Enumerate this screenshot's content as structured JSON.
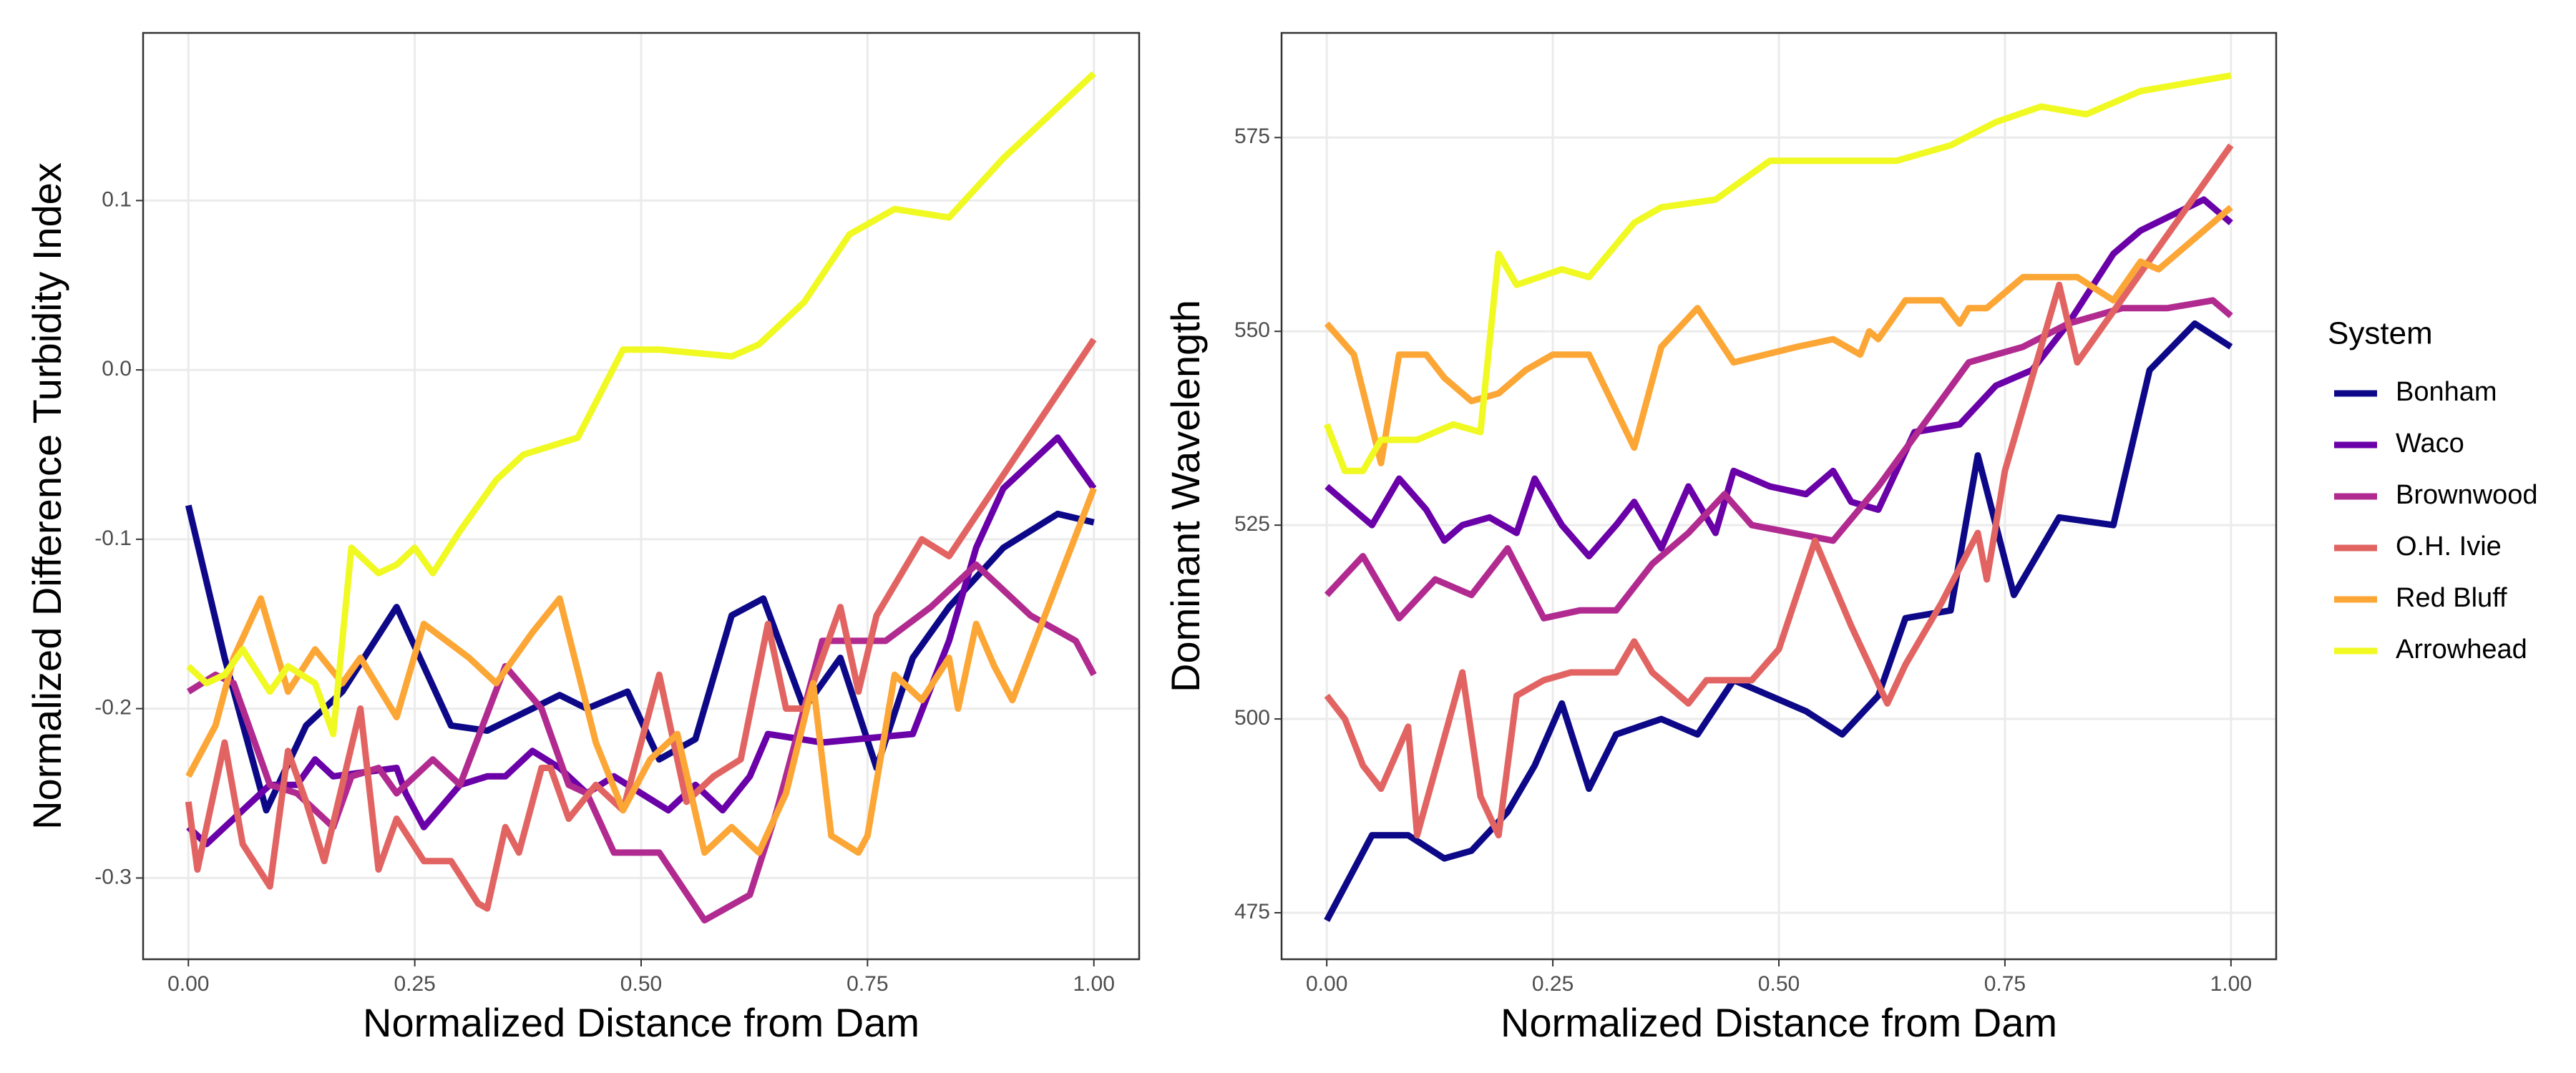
{
  "chart_data": [
    {
      "type": "line",
      "xlabel": "Normalized Distance from Dam",
      "ylabel": "Normalized Difference Turbidity Index",
      "xlim": [
        -0.05,
        1.05
      ],
      "ylim": [
        -0.348,
        0.199
      ],
      "xticks": [
        {
          "value": 0,
          "label": "0.00"
        },
        0.25,
        {
          "value": 0.5,
          "label": "0.50"
        },
        0.75,
        {
          "value": 1,
          "label": "1.00"
        }
      ],
      "yticks": [
        -0.3,
        -0.2,
        -0.1,
        {
          "value": 0,
          "label": "0.0"
        },
        0.1
      ],
      "grid": true,
      "series": [
        {
          "name": "Bonham",
          "color": "#0d0887",
          "x": [
            0,
            0.04,
            0.086,
            0.13,
            0.17,
            0.23,
            0.29,
            0.33,
            0.38,
            0.41,
            0.44,
            0.485,
            0.52,
            0.56,
            0.6,
            0.635,
            0.68,
            0.72,
            0.76,
            0.8,
            0.84,
            0.9,
            0.96,
            1.0
          ],
          "values": [
            -0.08,
            -0.17,
            -0.26,
            -0.21,
            -0.19,
            -0.14,
            -0.21,
            -0.213,
            -0.2,
            -0.192,
            -0.2,
            -0.19,
            -0.23,
            -0.218,
            -0.145,
            -0.135,
            -0.2,
            -0.17,
            -0.235,
            -0.17,
            -0.14,
            -0.105,
            -0.085,
            -0.09
          ]
        },
        {
          "name": "Waco",
          "color": "#6a00a8",
          "x": [
            0,
            0.02,
            0.06,
            0.09,
            0.12,
            0.14,
            0.16,
            0.23,
            0.24,
            0.26,
            0.3,
            0.33,
            0.35,
            0.38,
            0.41,
            0.44,
            0.47,
            0.5,
            0.53,
            0.56,
            0.59,
            0.62,
            0.64,
            0.7,
            0.8,
            0.84,
            0.87,
            0.9,
            0.96,
            1.0
          ],
          "values": [
            -0.27,
            -0.28,
            -0.26,
            -0.245,
            -0.245,
            -0.23,
            -0.24,
            -0.235,
            -0.25,
            -0.27,
            -0.245,
            -0.24,
            -0.24,
            -0.225,
            -0.235,
            -0.25,
            -0.24,
            -0.25,
            -0.26,
            -0.245,
            -0.26,
            -0.24,
            -0.215,
            -0.22,
            -0.215,
            -0.16,
            -0.105,
            -0.07,
            -0.04,
            -0.07
          ]
        },
        {
          "name": "Brownwood",
          "color": "#b12a90",
          "x": [
            0,
            0.03,
            0.05,
            0.09,
            0.12,
            0.16,
            0.18,
            0.21,
            0.23,
            0.27,
            0.3,
            0.35,
            0.39,
            0.42,
            0.44,
            0.47,
            0.52,
            0.57,
            0.62,
            0.65,
            0.7,
            0.77,
            0.82,
            0.87,
            0.93,
            0.98,
            1.0
          ],
          "values": [
            -0.19,
            -0.18,
            -0.185,
            -0.245,
            -0.25,
            -0.27,
            -0.24,
            -0.235,
            -0.25,
            -0.23,
            -0.245,
            -0.175,
            -0.2,
            -0.245,
            -0.25,
            -0.285,
            -0.285,
            -0.325,
            -0.31,
            -0.26,
            -0.16,
            -0.16,
            -0.14,
            -0.115,
            -0.145,
            -0.16,
            -0.18
          ]
        },
        {
          "name": "O.H. Ivie",
          "color": "#e16462",
          "x": [
            0,
            0.01,
            0.04,
            0.06,
            0.09,
            0.11,
            0.13,
            0.15,
            0.19,
            0.21,
            0.23,
            0.26,
            0.29,
            0.32,
            0.33,
            0.35,
            0.365,
            0.39,
            0.4,
            0.42,
            0.45,
            0.48,
            0.52,
            0.55,
            0.58,
            0.61,
            0.64,
            0.66,
            0.68,
            0.72,
            0.74,
            0.76,
            0.81,
            0.84,
            1.0
          ],
          "values": [
            -0.255,
            -0.295,
            -0.22,
            -0.28,
            -0.305,
            -0.225,
            -0.255,
            -0.29,
            -0.2,
            -0.295,
            -0.265,
            -0.29,
            -0.29,
            -0.315,
            -0.318,
            -0.27,
            -0.285,
            -0.235,
            -0.235,
            -0.265,
            -0.245,
            -0.26,
            -0.18,
            -0.255,
            -0.24,
            -0.23,
            -0.15,
            -0.2,
            -0.2,
            -0.14,
            -0.19,
            -0.145,
            -0.1,
            -0.11,
            0.018
          ]
        },
        {
          "name": "Red Bluff",
          "color": "#fca636",
          "x": [
            0,
            0.03,
            0.05,
            0.08,
            0.11,
            0.14,
            0.17,
            0.19,
            0.23,
            0.26,
            0.31,
            0.34,
            0.38,
            0.41,
            0.45,
            0.48,
            0.51,
            0.54,
            0.57,
            0.6,
            0.63,
            0.66,
            0.69,
            0.71,
            0.74,
            0.75,
            0.78,
            0.81,
            0.84,
            0.85,
            0.87,
            0.89,
            0.91,
            1.0
          ],
          "values": [
            -0.24,
            -0.21,
            -0.17,
            -0.135,
            -0.19,
            -0.165,
            -0.185,
            -0.17,
            -0.205,
            -0.15,
            -0.17,
            -0.185,
            -0.155,
            -0.135,
            -0.22,
            -0.26,
            -0.23,
            -0.215,
            -0.285,
            -0.27,
            -0.285,
            -0.25,
            -0.185,
            -0.275,
            -0.285,
            -0.275,
            -0.18,
            -0.195,
            -0.17,
            -0.2,
            -0.15,
            -0.175,
            -0.195,
            -0.07
          ]
        },
        {
          "name": "Arrowhead",
          "color": "#f0f921",
          "x": [
            0,
            0.02,
            0.04,
            0.06,
            0.09,
            0.11,
            0.14,
            0.16,
            0.18,
            0.21,
            0.23,
            0.25,
            0.27,
            0.3,
            0.34,
            0.37,
            0.43,
            0.48,
            0.52,
            0.6,
            0.63,
            0.68,
            0.73,
            0.78,
            0.84,
            0.9,
            0.95,
            1.0
          ],
          "values": [
            -0.175,
            -0.185,
            -0.18,
            -0.165,
            -0.19,
            -0.175,
            -0.185,
            -0.215,
            -0.105,
            -0.12,
            -0.115,
            -0.105,
            -0.12,
            -0.095,
            -0.065,
            -0.05,
            -0.04,
            0.012,
            0.012,
            0.008,
            0.015,
            0.04,
            0.08,
            0.095,
            0.09,
            0.125,
            0.15,
            0.175
          ]
        }
      ]
    },
    {
      "type": "line",
      "xlabel": "Normalized Distance from Dam",
      "ylabel": "Dominant Wavelength",
      "legend_title": "System",
      "xlim": [
        -0.05,
        1.05
      ],
      "ylim": [
        469,
        588.5
      ],
      "xticks": [
        {
          "value": 0,
          "label": "0.00"
        },
        0.25,
        {
          "value": 0.5,
          "label": "0.50"
        },
        0.75,
        {
          "value": 1,
          "label": "1.00"
        }
      ],
      "yticks": [
        475,
        500,
        525,
        550,
        575
      ],
      "grid": true,
      "series": [
        {
          "name": "Bonham",
          "color": "#0d0887",
          "x": [
            0,
            0.05,
            0.09,
            0.13,
            0.16,
            0.2,
            0.23,
            0.26,
            0.29,
            0.32,
            0.37,
            0.41,
            0.45,
            0.49,
            0.53,
            0.57,
            0.61,
            0.64,
            0.69,
            0.72,
            0.76,
            0.81,
            0.87,
            0.91,
            0.96,
            1.0
          ],
          "values": [
            474,
            485,
            485,
            482,
            483,
            488,
            494,
            502,
            491,
            498,
            500,
            498,
            505,
            503,
            501,
            498,
            503,
            513,
            514,
            534,
            516,
            526,
            525,
            545,
            551,
            548
          ]
        },
        {
          "name": "Waco",
          "color": "#6a00a8",
          "x": [
            0,
            0.03,
            0.05,
            0.08,
            0.11,
            0.13,
            0.15,
            0.18,
            0.21,
            0.23,
            0.26,
            0.29,
            0.32,
            0.34,
            0.37,
            0.4,
            0.43,
            0.45,
            0.49,
            0.53,
            0.56,
            0.58,
            0.61,
            0.65,
            0.7,
            0.74,
            0.78,
            0.82,
            0.87,
            0.9,
            0.97,
            1.0
          ],
          "values": [
            530,
            527,
            525,
            531,
            527,
            523,
            525,
            526,
            524,
            531,
            525,
            521,
            525,
            528,
            522,
            530,
            524,
            532,
            530,
            529,
            532,
            528,
            527,
            537,
            538,
            543,
            545,
            551,
            560,
            563,
            567,
            564
          ]
        },
        {
          "name": "Brownwood",
          "color": "#b12a90",
          "x": [
            0,
            0.04,
            0.08,
            0.12,
            0.16,
            0.2,
            0.24,
            0.28,
            0.32,
            0.36,
            0.4,
            0.44,
            0.47,
            0.56,
            0.61,
            0.71,
            0.77,
            0.82,
            0.88,
            0.93,
            0.98,
            1.0
          ],
          "values": [
            516,
            521,
            513,
            518,
            516,
            522,
            513,
            514,
            514,
            520,
            524,
            529,
            525,
            523,
            530,
            546,
            548,
            551,
            553,
            553,
            554,
            552
          ]
        },
        {
          "name": "O.H. Ivie",
          "color": "#e16462",
          "x": [
            0,
            0.02,
            0.04,
            0.06,
            0.09,
            0.1,
            0.15,
            0.17,
            0.19,
            0.21,
            0.24,
            0.27,
            0.32,
            0.34,
            0.36,
            0.4,
            0.42,
            0.47,
            0.5,
            0.54,
            0.58,
            0.62,
            0.64,
            0.68,
            0.72,
            0.73,
            0.75,
            0.81,
            0.83,
            1.0
          ],
          "values": [
            503,
            500,
            494,
            491,
            499,
            485,
            506,
            490,
            485,
            503,
            505,
            506,
            506,
            510,
            506,
            502,
            505,
            505,
            509,
            523,
            512,
            502,
            507,
            515,
            524,
            518,
            532,
            556,
            546,
            574
          ]
        },
        {
          "name": "Red Bluff",
          "color": "#fca636",
          "x": [
            0,
            0.03,
            0.06,
            0.08,
            0.11,
            0.13,
            0.16,
            0.19,
            0.22,
            0.25,
            0.29,
            0.34,
            0.37,
            0.41,
            0.45,
            0.52,
            0.56,
            0.59,
            0.6,
            0.61,
            0.64,
            0.68,
            0.7,
            0.71,
            0.73,
            0.77,
            0.83,
            0.87,
            0.9,
            0.92,
            1.0
          ],
          "values": [
            551,
            547,
            533,
            547,
            547,
            544,
            541,
            542,
            545,
            547,
            547,
            535,
            548,
            553,
            546,
            548,
            549,
            547,
            550,
            549,
            554,
            554,
            551,
            553,
            553,
            557,
            557,
            554,
            559,
            558,
            566
          ]
        },
        {
          "name": "Arrowhead",
          "color": "#f0f921",
          "x": [
            0,
            0.02,
            0.04,
            0.06,
            0.1,
            0.14,
            0.17,
            0.19,
            0.21,
            0.26,
            0.29,
            0.34,
            0.37,
            0.43,
            0.49,
            0.56,
            0.63,
            0.69,
            0.74,
            0.79,
            0.84,
            0.9,
            1.0
          ],
          "values": [
            538,
            532,
            532,
            536,
            536,
            538,
            537,
            560,
            556,
            558,
            557,
            564,
            566,
            567,
            572,
            572,
            572,
            574,
            577,
            579,
            578,
            581,
            583
          ]
        }
      ]
    }
  ]
}
